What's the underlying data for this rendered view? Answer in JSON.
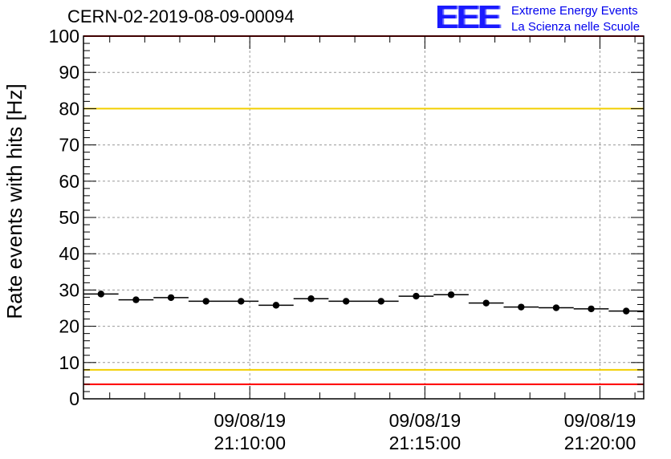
{
  "header": {
    "title": "CERN-02-2019-08-09-00094",
    "logo_mark": "EEE",
    "logo_line1": "Extreme Energy Events",
    "logo_line2": "La Scienza nelle Scuole"
  },
  "chart_data": {
    "type": "scatter",
    "title": "CERN-02-2019-08-09-00094",
    "ylabel": "Rate events with hits [Hz]",
    "xlabel": "",
    "ylim": [
      0,
      100
    ],
    "yticks": [
      0,
      10,
      20,
      30,
      40,
      50,
      60,
      70,
      80,
      90,
      100
    ],
    "xlim": [
      "09/08/19 21:05:15",
      "09/08/19 21:21:15"
    ],
    "xticks": [
      {
        "time": "21:10:00",
        "date": "09/08/19"
      },
      {
        "time": "21:15:00",
        "date": "09/08/19"
      },
      {
        "time": "21:20:00",
        "date": "09/08/19"
      }
    ],
    "grid": true,
    "bin_width_seconds": 60,
    "series": [
      {
        "x": [
          "21:05:45",
          "21:06:45",
          "21:07:45",
          "21:08:45",
          "21:09:45",
          "21:10:45",
          "21:11:45",
          "21:12:45",
          "21:13:45",
          "21:14:45",
          "21:15:45",
          "21:16:45",
          "21:17:45",
          "21:18:45",
          "21:19:45",
          "21:20:45"
        ],
        "values": [
          28.9,
          27.3,
          27.9,
          26.9,
          26.9,
          25.8,
          27.6,
          26.9,
          26.9,
          28.3,
          28.7,
          26.4,
          25.3,
          25.1,
          24.8,
          24.2
        ]
      }
    ],
    "reference_lines": [
      {
        "y": 80,
        "color": "#f2cf00"
      },
      {
        "y": 8,
        "color": "#f2cf00"
      },
      {
        "y": 100,
        "color": "#ff0000"
      },
      {
        "y": 4,
        "color": "#ff0000"
      }
    ],
    "colors": {
      "markers": "#000000",
      "grid": "#999999",
      "frame": "#000000"
    }
  }
}
